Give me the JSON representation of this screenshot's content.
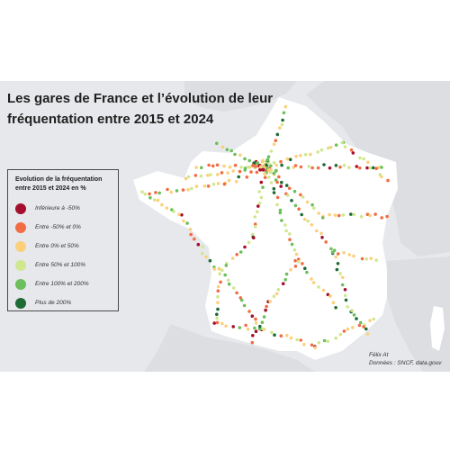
{
  "title": "Les gares de France et l’évolution de leur fréquentation entre 2015 et 2024",
  "legend": {
    "title": "Evolution de la fréquentation entre 2015 et 2024 en %",
    "items": [
      {
        "label": "Inférieure à -50%",
        "color": "#a50f2d"
      },
      {
        "label": "Entre -50% et 0%",
        "color": "#f26d43"
      },
      {
        "label": "Entre 0% et 50%",
        "color": "#fcd07b"
      },
      {
        "label": "Entre 50% et 100%",
        "color": "#cfe88f"
      },
      {
        "label": "Entre 100% et 200%",
        "color": "#6cbf5b"
      },
      {
        "label": "Plus de 200%",
        "color": "#1e6b34"
      }
    ]
  },
  "credits": {
    "author": "Félix At",
    "source": "Données : SNCF, data.gouv"
  },
  "colors": {
    "sea": "#e6e8eb",
    "land_france": "#ffffff",
    "land_neighbors": "#dcdee2"
  }
}
